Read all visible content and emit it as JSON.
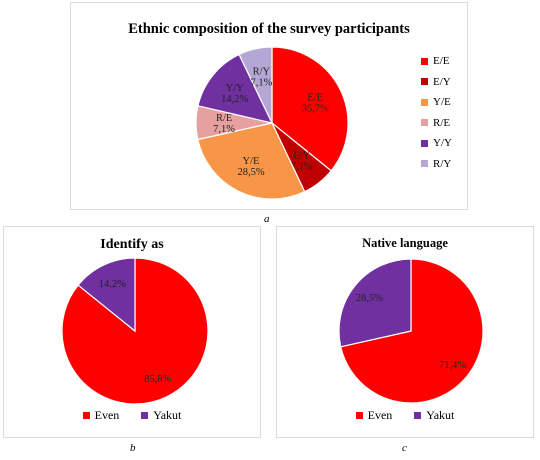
{
  "chart_data": [
    {
      "type": "pie",
      "title": "Ethnic composition of the survey participants",
      "caption": "a",
      "slices": [
        {
          "name": "E/E",
          "value": 35.7,
          "label": "E/E\n35,7%",
          "color": "#ff0000"
        },
        {
          "name": "E/Y",
          "value": 7.1,
          "label": "E/Y\n7,1%",
          "color": "#c00000"
        },
        {
          "name": "Y/E",
          "value": 28.5,
          "label": "Y/E\n28,5%",
          "color": "#f79646"
        },
        {
          "name": "R/E",
          "value": 7.1,
          "label": "R/E\n7,1%",
          "color": "#e6a0a0"
        },
        {
          "name": "Y/Y",
          "value": 14.2,
          "label": "Y/Y\n14,2%",
          "color": "#7030a0"
        },
        {
          "name": "R/Y",
          "value": 7.1,
          "label": "R/Y\n7,1%",
          "color": "#b4a7d6"
        }
      ],
      "legend_placement": "right"
    },
    {
      "type": "pie",
      "title": "Identify as",
      "caption": "b",
      "slices": [
        {
          "name": "Even",
          "value": 85.8,
          "label": "85,8%",
          "color": "#ff0000"
        },
        {
          "name": "Yakut",
          "value": 14.2,
          "label": "14,2%",
          "color": "#7030a0"
        }
      ],
      "legend_placement": "bottom"
    },
    {
      "type": "pie",
      "title": "Native language",
      "caption": "c",
      "slices": [
        {
          "name": "Even",
          "value": 71.4,
          "label": "71,4%",
          "color": "#ff0000"
        },
        {
          "name": "Yakut",
          "value": 28.5,
          "label": "28,5%",
          "color": "#7030a0"
        }
      ],
      "legend_placement": "bottom"
    }
  ]
}
